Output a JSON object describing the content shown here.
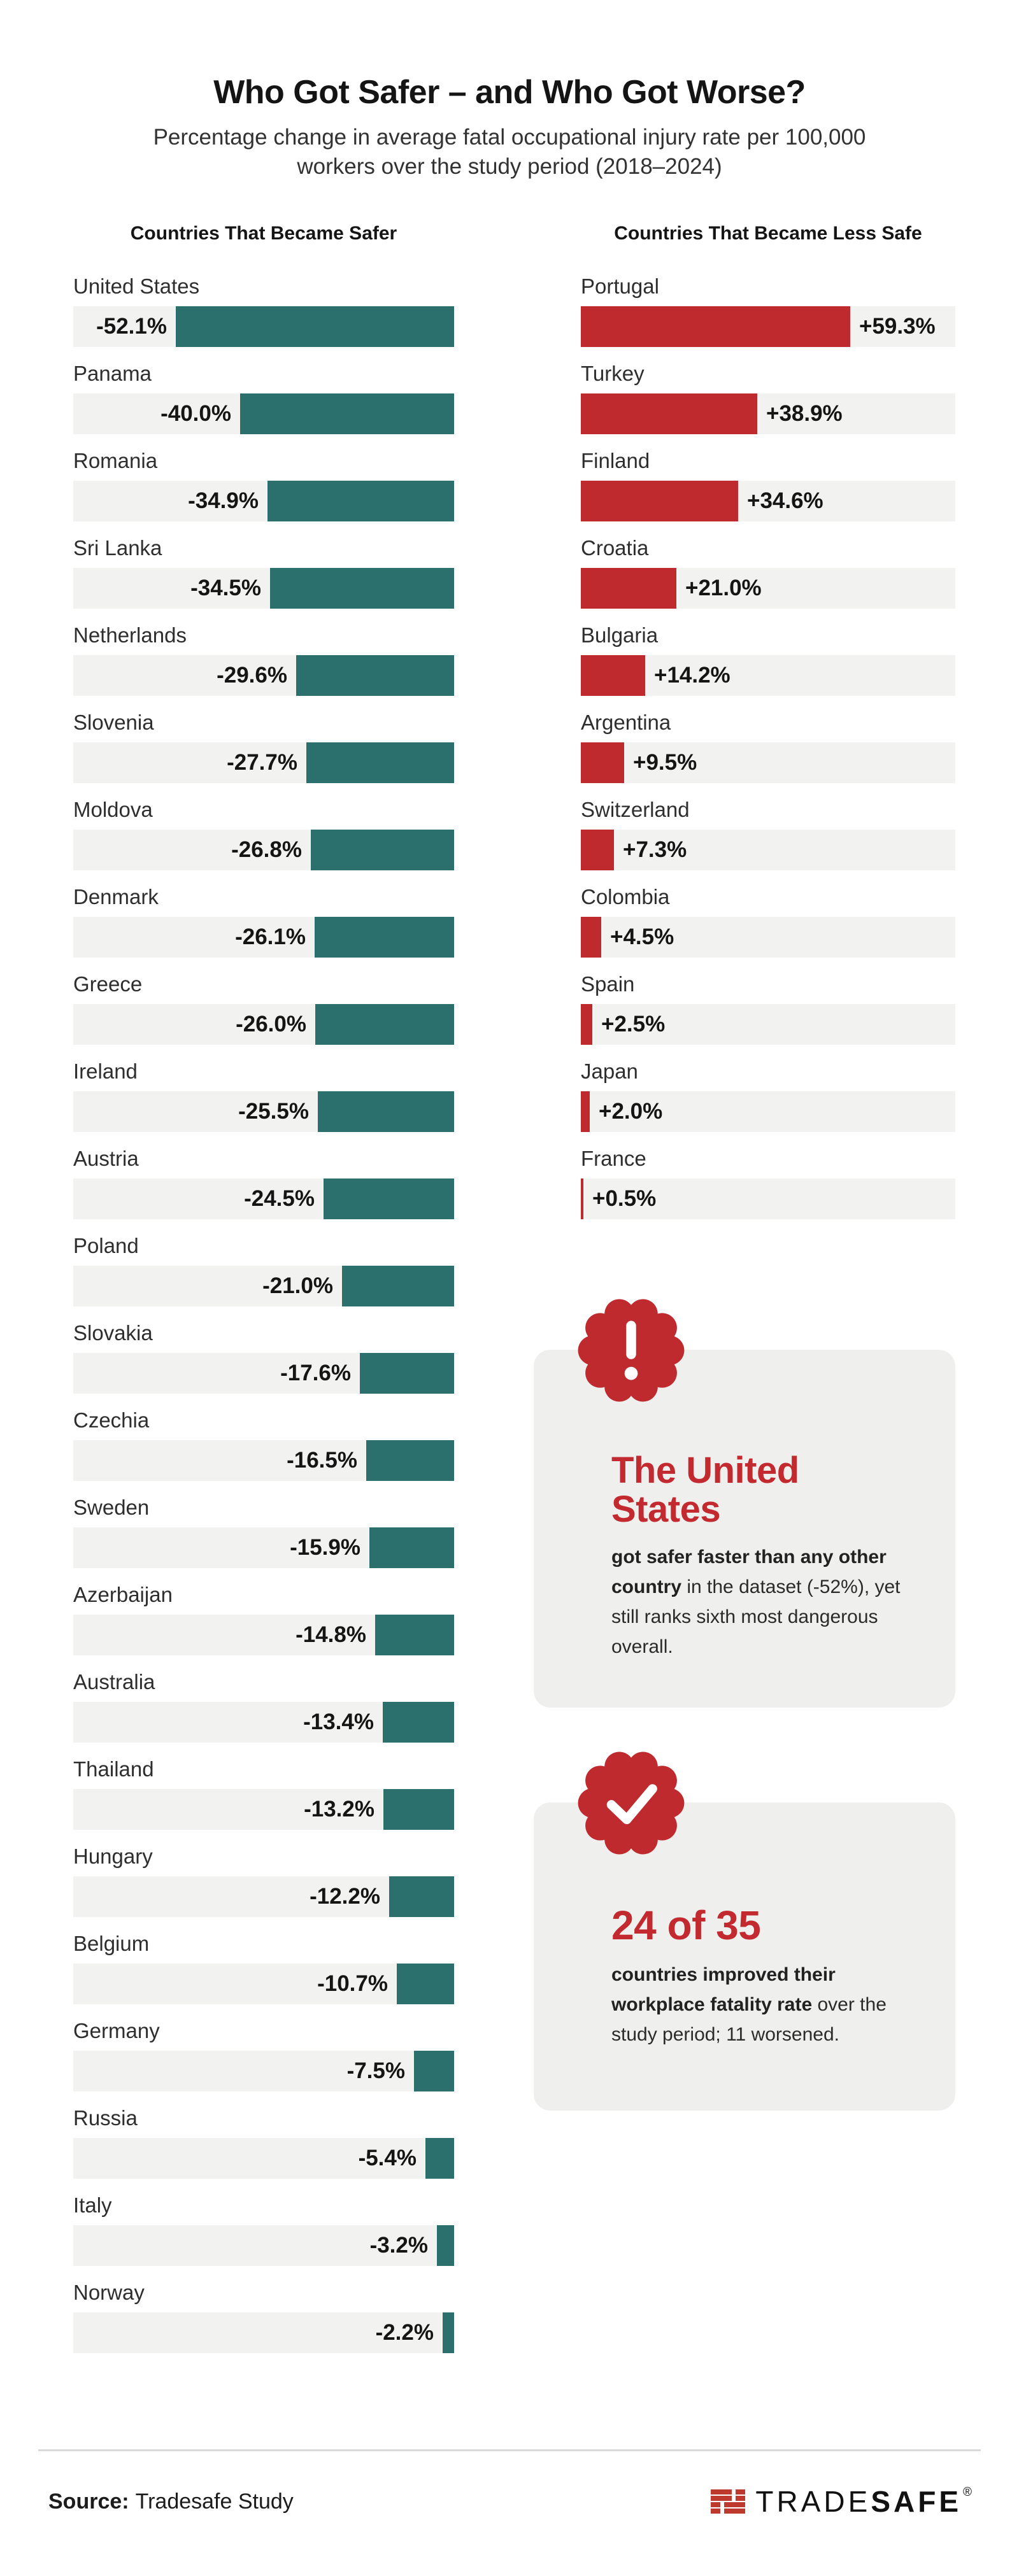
{
  "title": "Who Got Safer – and Who Got Worse?",
  "subtitle": {
    "line1": "Percentage change in average fatal occupational injury rate per 100,000",
    "line2": "workers over the study period (2018–2024)"
  },
  "colors": {
    "safer_bar": "#2C706D",
    "less_safe_bar": "#BE2A2E",
    "accent_red": "#C22A30",
    "track": "#F2F2F1",
    "callout_bg": "#EFEFEE",
    "text_dark": "#151515",
    "text_body": "#2B2B2B"
  },
  "chart_data": {
    "type": "bar",
    "orientation": "horizontal",
    "title": "Who Got Safer – and Who Got Worse?",
    "unit": "% change in fatal occupational injury rate per 100,000 workers (2018–2024)",
    "grid": false,
    "columns": [
      {
        "id": "safer",
        "header": "Countries That Became Safer",
        "bar_color": "#2C706D",
        "bar_alignment": "right",
        "categories": [
          "United States",
          "Panama",
          "Romania",
          "Sri Lanka",
          "Netherlands",
          "Slovenia",
          "Moldova",
          "Denmark",
          "Greece",
          "Ireland",
          "Austria",
          "Poland",
          "Slovakia",
          "Czechia",
          "Sweden",
          "Azerbaijan",
          "Australia",
          "Thailand",
          "Hungary",
          "Belgium",
          "Germany",
          "Russia",
          "Italy",
          "Norway"
        ],
        "values": [
          -52.1,
          -40.0,
          -34.9,
          -34.5,
          -29.6,
          -27.7,
          -26.8,
          -26.1,
          -26.0,
          -25.5,
          -24.5,
          -21.0,
          -17.6,
          -16.5,
          -15.9,
          -14.8,
          -13.4,
          -13.2,
          -12.2,
          -10.7,
          -7.5,
          -5.4,
          -3.2,
          -2.2
        ],
        "labels": [
          "-52.1%",
          "-40.0%",
          "-34.9%",
          "-34.5%",
          "-29.6%",
          "-27.7%",
          "-26.8%",
          "-26.1%",
          "-26.0%",
          "-25.5%",
          "-24.5%",
          "-21.0%",
          "-17.6%",
          "-16.5%",
          "-15.9%",
          "-14.8%",
          "-13.4%",
          "-13.2%",
          "-12.2%",
          "-10.7%",
          "-7.5%",
          "-5.4%",
          "-3.2%",
          "-2.2%"
        ]
      },
      {
        "id": "less_safe",
        "header": "Countries That Became Less Safe",
        "bar_color": "#BE2A2E",
        "bar_alignment": "left",
        "categories": [
          "Portugal",
          "Turkey",
          "Finland",
          "Croatia",
          "Bulgaria",
          "Argentina",
          "Switzerland",
          "Colombia",
          "Spain",
          "Japan",
          "France"
        ],
        "values": [
          59.3,
          38.9,
          34.6,
          21.0,
          14.2,
          9.5,
          7.3,
          4.5,
          2.5,
          2.0,
          0.5
        ],
        "labels": [
          "+59.3%",
          "+38.9%",
          "+34.6%",
          "+21.0%",
          "+14.2%",
          "+9.5%",
          "+7.3%",
          "+4.5%",
          "+2.5%",
          "+2.0%",
          "+0.5%"
        ]
      }
    ]
  },
  "callouts": [
    {
      "icon": "exclamation-badge",
      "heading": "The United States",
      "body_bold": "got safer faster than any other country",
      "body_rest": " in the dataset (-52%), yet still ranks sixth most dangerous overall."
    },
    {
      "icon": "check-badge",
      "heading": "24 of 35",
      "body_bold": "countries improved their workplace fatality rate",
      "body_rest": " over the study period; 11 worsened."
    }
  ],
  "footer": {
    "source_label": "Source:",
    "source_text": "Tradesafe Study",
    "logo": {
      "trade": "TRADE",
      "safe": "SAFE",
      "registered": "®"
    }
  }
}
